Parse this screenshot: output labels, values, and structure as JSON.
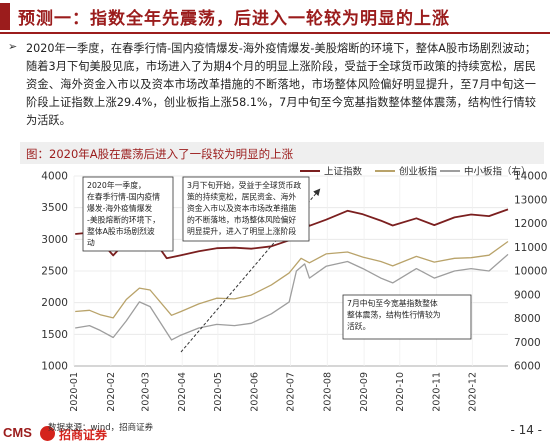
{
  "header": {
    "title": "预测一：指数全年先震荡，后进入一轮较为明显的上涨"
  },
  "summary": {
    "bullet": "➢",
    "text": "2020年一季度，在春季行情-国内疫情爆发-海外疫情爆发-美股熔断的环境下，整体A股市场剧烈波动；随着3月下旬美股见底，市场进入了为期4个月的明显上涨阶段，受益于全球货币政策的持续宽松，居民资金、海外资金入市以及资本市场改革措施的不断落地，市场整体风险偏好明显提升，至7月中旬这一阶段上证指数上涨29.4%，创业板指上涨58.1%，7月中旬至今宽基指数整体整体震荡，结构性行情较为活跃。"
  },
  "chart": {
    "title": "图：2020年A股在震荡后进入了一段较为明显的上涨",
    "annotations": [
      "2020年一季度，\n在春季行情-国内疫情\n爆发-海外疫情爆发\n-美股熔断的环境下，\n整体A股市场剧烈波\n动",
      "3月下旬开始，受益于全球货币政\n策的持续宽松，居民资金、海外\n资金入市以及资本市场改革措施\n的不断落地，市场整体风险偏好\n明显提升，进入了明显上涨阶段",
      "7月中旬至今宽基指数整体\n整体震荡，结构性行情较为\n活跃。"
    ]
  },
  "chart_data": {
    "type": "line",
    "title": "图：2020年A股在震荡后进入了一段较为明显的上涨",
    "x": [
      "2020-01",
      "2020-02",
      "2020-03",
      "2020-04",
      "2020-05",
      "2020-06",
      "2020-07",
      "2020-08",
      "2020-09",
      "2020-10",
      "2020-11",
      "2020-12"
    ],
    "x_start": "2020-01-01",
    "x_end": "2020-12-31",
    "y_left_lim": [
      1000,
      4000
    ],
    "y_left_ticks": [
      1000,
      1500,
      2000,
      2500,
      3000,
      3500,
      4000
    ],
    "y_right_lim": [
      6000,
      14000
    ],
    "y_right_ticks": [
      6000,
      7000,
      8000,
      9000,
      10000,
      11000,
      12000,
      13000,
      14000
    ],
    "grid": true,
    "legend_position": "top-right",
    "series": [
      {
        "name": "上证指数",
        "axis": "left",
        "color": "#7b1f1f",
        "points": [
          [
            "2020-01-02",
            3085
          ],
          [
            "2020-01-14",
            3106
          ],
          [
            "2020-01-23",
            2976
          ],
          [
            "2020-02-03",
            2746
          ],
          [
            "2020-02-10",
            2890
          ],
          [
            "2020-02-24",
            3031
          ],
          [
            "2020-03-05",
            3071
          ],
          [
            "2020-03-19",
            2702
          ],
          [
            "2020-03-31",
            2750
          ],
          [
            "2020-04-15",
            2811
          ],
          [
            "2020-04-30",
            2860
          ],
          [
            "2020-05-15",
            2868
          ],
          [
            "2020-05-29",
            2852
          ],
          [
            "2020-06-15",
            2890
          ],
          [
            "2020-06-30",
            2985
          ],
          [
            "2020-07-06",
            3332
          ],
          [
            "2020-07-09",
            3450
          ],
          [
            "2020-07-17",
            3214
          ],
          [
            "2020-07-31",
            3310
          ],
          [
            "2020-08-18",
            3451
          ],
          [
            "2020-08-31",
            3395
          ],
          [
            "2020-09-15",
            3296
          ],
          [
            "2020-09-25",
            3219
          ],
          [
            "2020-10-15",
            3332
          ],
          [
            "2020-10-30",
            3225
          ],
          [
            "2020-11-16",
            3347
          ],
          [
            "2020-11-30",
            3392
          ],
          [
            "2020-12-15",
            3367
          ],
          [
            "2020-12-31",
            3473
          ]
        ]
      },
      {
        "name": "创业板指",
        "axis": "left",
        "color": "#b9a36a",
        "points": [
          [
            "2020-01-02",
            1860
          ],
          [
            "2020-01-14",
            1880
          ],
          [
            "2020-01-23",
            1810
          ],
          [
            "2020-02-03",
            1760
          ],
          [
            "2020-02-14",
            2050
          ],
          [
            "2020-02-25",
            2230
          ],
          [
            "2020-03-05",
            2200
          ],
          [
            "2020-03-23",
            1800
          ],
          [
            "2020-03-31",
            1860
          ],
          [
            "2020-04-15",
            1980
          ],
          [
            "2020-04-30",
            2070
          ],
          [
            "2020-05-15",
            2060
          ],
          [
            "2020-05-29",
            2120
          ],
          [
            "2020-06-15",
            2280
          ],
          [
            "2020-06-30",
            2470
          ],
          [
            "2020-07-10",
            2700
          ],
          [
            "2020-07-17",
            2630
          ],
          [
            "2020-07-31",
            2770
          ],
          [
            "2020-08-18",
            2800
          ],
          [
            "2020-08-31",
            2720
          ],
          [
            "2020-09-15",
            2650
          ],
          [
            "2020-09-25",
            2580
          ],
          [
            "2020-10-15",
            2730
          ],
          [
            "2020-10-30",
            2640
          ],
          [
            "2020-11-16",
            2700
          ],
          [
            "2020-11-30",
            2710
          ],
          [
            "2020-12-15",
            2750
          ],
          [
            "2020-12-31",
            2966
          ]
        ]
      },
      {
        "name": "中小板指（右）",
        "axis": "right",
        "color": "#9e9e9e",
        "points": [
          [
            "2020-01-02",
            7600
          ],
          [
            "2020-01-14",
            7700
          ],
          [
            "2020-01-23",
            7500
          ],
          [
            "2020-02-03",
            7200
          ],
          [
            "2020-02-14",
            7900
          ],
          [
            "2020-02-25",
            8700
          ],
          [
            "2020-03-05",
            8500
          ],
          [
            "2020-03-23",
            7100
          ],
          [
            "2020-03-31",
            7300
          ],
          [
            "2020-04-15",
            7600
          ],
          [
            "2020-04-30",
            7750
          ],
          [
            "2020-05-15",
            7700
          ],
          [
            "2020-05-29",
            7800
          ],
          [
            "2020-06-15",
            8200
          ],
          [
            "2020-06-30",
            8700
          ],
          [
            "2020-07-06",
            10000
          ],
          [
            "2020-07-13",
            10300
          ],
          [
            "2020-07-17",
            9700
          ],
          [
            "2020-07-31",
            10200
          ],
          [
            "2020-08-18",
            10400
          ],
          [
            "2020-08-31",
            10100
          ],
          [
            "2020-09-15",
            9700
          ],
          [
            "2020-09-25",
            9500
          ],
          [
            "2020-10-15",
            10100
          ],
          [
            "2020-10-30",
            9700
          ],
          [
            "2020-11-16",
            10000
          ],
          [
            "2020-11-30",
            10100
          ],
          [
            "2020-12-15",
            10000
          ],
          [
            "2020-12-31",
            10700
          ]
        ]
      }
    ]
  },
  "footer": {
    "source": "数据来源：wind，招商证券",
    "page": "- 14 -",
    "logo_cms": "CMS",
    "logo_name": "招商证券"
  }
}
